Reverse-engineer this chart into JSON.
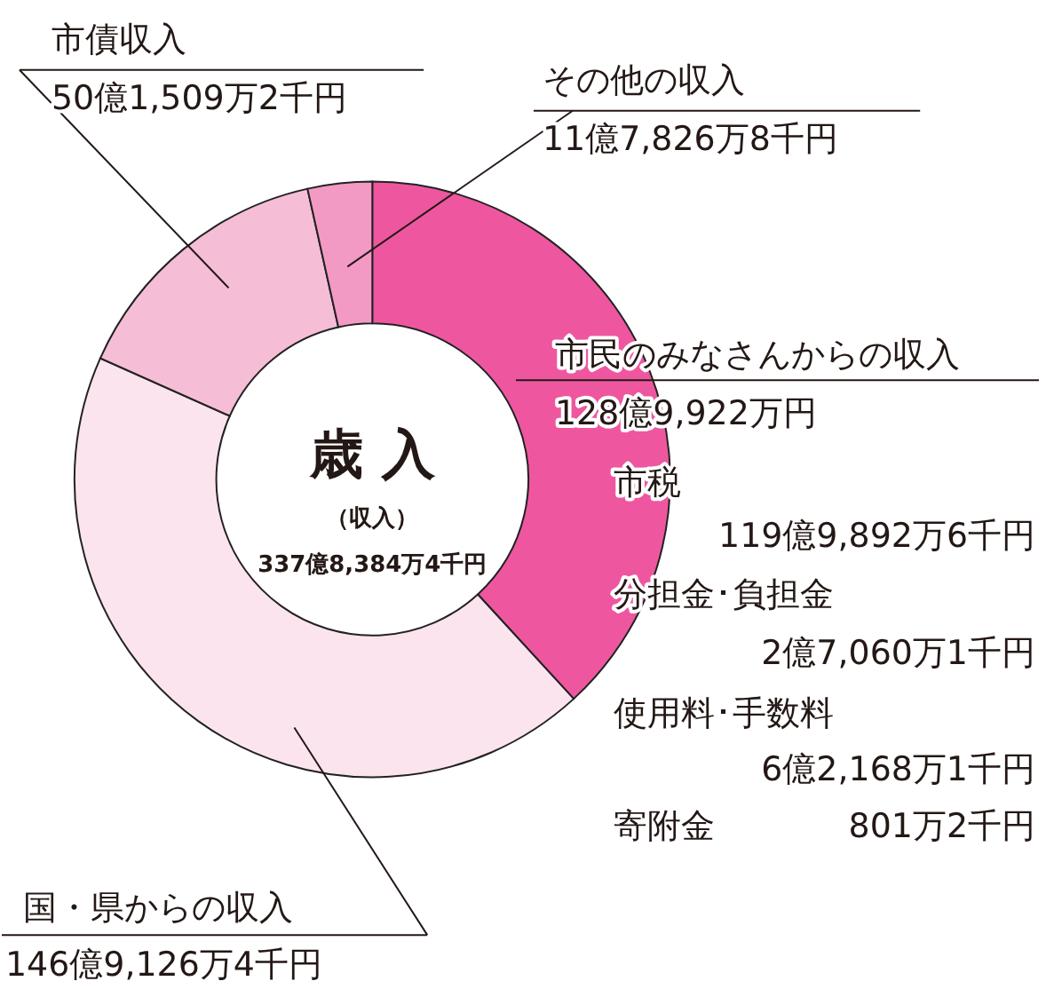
{
  "chart_data": {
    "type": "donut",
    "title": "歳 入",
    "subtitle": "（収入）",
    "categories": [
      "市民のみなさんからの収入",
      "国・県からの収入",
      "市債収入",
      "その他の収入"
    ],
    "values": [
      38.18,
      43.49,
      14.84,
      3.49
    ],
    "colors": [
      "#ee57a0",
      "#fce4ef",
      "#f6bdd7",
      "#f39ac4"
    ],
    "annotations": [
      "128億9,922万円",
      "146億9,126万4千円",
      "50億1,509万2千円",
      "11億7,826万8千円",
      "337億8,384万4千円",
      "市税",
      "119億9,892万6千円",
      "分担金･負担金",
      "2億7,060万1千円",
      "使用料･手数料",
      "6億2,168万1千円",
      "寄附金",
      "801万2千円"
    ],
    "legend": false
  }
}
